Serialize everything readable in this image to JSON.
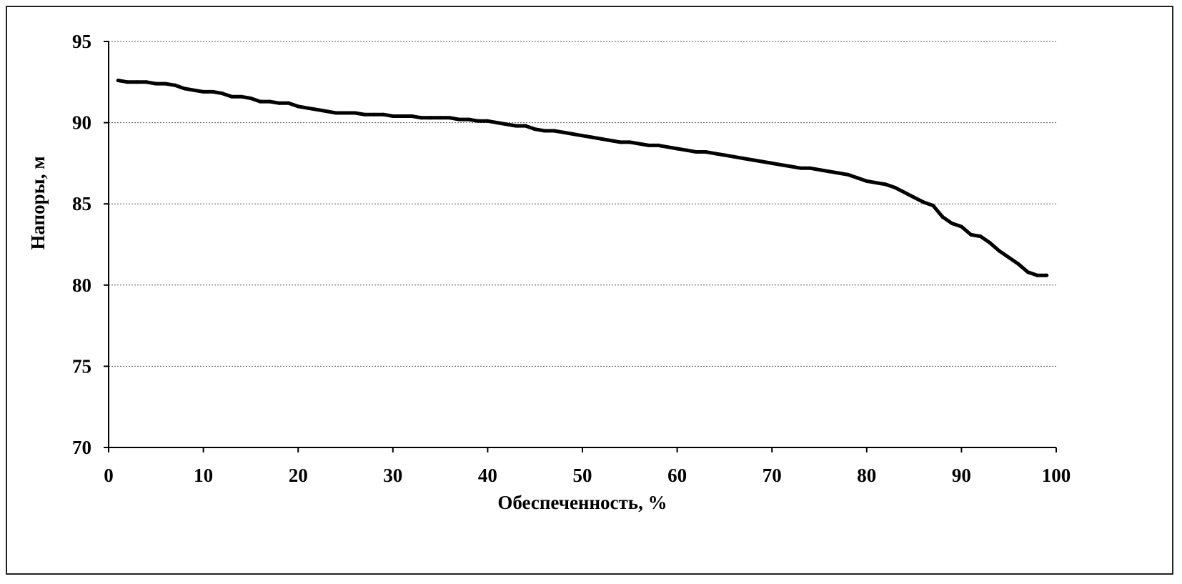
{
  "chart_data": {
    "type": "line",
    "title": "",
    "xlabel": "Обеспеченность, %",
    "ylabel": "Напоры, м",
    "xlim": [
      0,
      100
    ],
    "ylim": [
      70,
      95
    ],
    "x_ticks": [
      "0",
      "10",
      "20",
      "30",
      "40",
      "50",
      "60",
      "70",
      "80",
      "90",
      "100"
    ],
    "y_ticks": [
      "70",
      "75",
      "80",
      "85",
      "90",
      "95"
    ],
    "grid": true,
    "legend": "none",
    "series": [
      {
        "x": [
          1,
          2,
          3,
          4,
          5,
          6,
          7,
          8,
          9,
          10,
          11,
          12,
          13,
          14,
          15,
          16,
          17,
          18,
          19,
          20,
          21,
          22,
          23,
          24,
          25,
          26,
          27,
          28,
          29,
          30,
          31,
          32,
          33,
          34,
          35,
          36,
          37,
          38,
          39,
          40,
          41,
          42,
          43,
          44,
          45,
          46,
          47,
          48,
          49,
          50,
          51,
          52,
          53,
          54,
          55,
          56,
          57,
          58,
          59,
          60,
          61,
          62,
          63,
          64,
          65,
          66,
          67,
          68,
          69,
          70,
          71,
          72,
          73,
          74,
          75,
          76,
          77,
          78,
          79,
          80,
          81,
          82,
          83,
          84,
          85,
          86,
          87,
          88,
          89,
          90,
          91,
          92,
          93,
          94,
          95,
          96,
          97,
          98,
          99
        ],
        "values": [
          92.6,
          92.5,
          92.5,
          92.5,
          92.4,
          92.4,
          92.3,
          92.1,
          92.0,
          91.9,
          91.9,
          91.8,
          91.6,
          91.6,
          91.5,
          91.3,
          91.3,
          91.2,
          91.2,
          91.0,
          90.9,
          90.8,
          90.7,
          90.6,
          90.6,
          90.6,
          90.5,
          90.5,
          90.5,
          90.4,
          90.4,
          90.4,
          90.3,
          90.3,
          90.3,
          90.3,
          90.2,
          90.2,
          90.1,
          90.1,
          90.0,
          89.9,
          89.8,
          89.8,
          89.6,
          89.5,
          89.5,
          89.4,
          89.3,
          89.2,
          89.1,
          89.0,
          88.9,
          88.8,
          88.8,
          88.7,
          88.6,
          88.6,
          88.5,
          88.4,
          88.3,
          88.2,
          88.2,
          88.1,
          88.0,
          87.9,
          87.8,
          87.7,
          87.6,
          87.5,
          87.4,
          87.3,
          87.2,
          87.2,
          87.1,
          87.0,
          86.9,
          86.8,
          86.6,
          86.4,
          86.3,
          86.2,
          86.0,
          85.7,
          85.4,
          85.1,
          84.9,
          84.2,
          83.8,
          83.6,
          83.1,
          83.0,
          82.6,
          82.1,
          81.7,
          81.3,
          80.8,
          80.6,
          80.6
        ]
      }
    ]
  }
}
